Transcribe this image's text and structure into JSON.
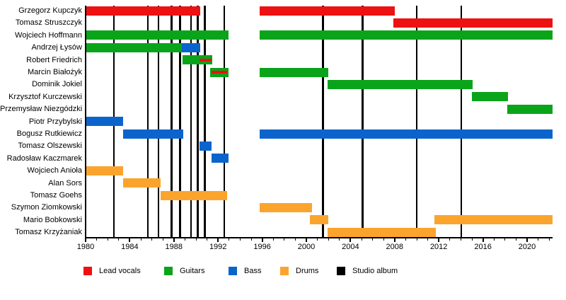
{
  "chart_data": {
    "type": "bar",
    "subtype": "horizontal-timeline-gantt",
    "title": "",
    "xlabel": "",
    "ylabel": "",
    "x_axis": {
      "min": 1980,
      "max": 2022.3,
      "major_ticks": [
        1980,
        1984,
        1988,
        1992,
        1996,
        2000,
        2004,
        2008,
        2012,
        2016,
        2020
      ],
      "major_tick_labels": [
        "1980",
        "1984",
        "1988",
        "1992",
        "1996",
        "2000",
        "2004",
        "2008",
        "2012",
        "2016",
        "2020"
      ],
      "minor_tick_interval": 1,
      "grid": false
    },
    "colors": {
      "lead_vocals": "#ee1111",
      "guitars": "#0aa41a",
      "bass": "#0b64cc",
      "drums": "#fba42d",
      "studio_album": "#000000"
    },
    "members": [
      {
        "name": "Grzegorz Kupczyk",
        "segments": [
          {
            "start": 1980,
            "end": 1990.4,
            "role": "lead_vocals"
          },
          {
            "start": 1995.8,
            "end": 2008.0,
            "role": "lead_vocals"
          }
        ],
        "overlays": []
      },
      {
        "name": "Tomasz Struszczyk",
        "segments": [
          {
            "start": 2007.9,
            "end": 2022.3,
            "role": "lead_vocals"
          }
        ],
        "overlays": []
      },
      {
        "name": "Wojciech Hoffmann",
        "segments": [
          {
            "start": 1980,
            "end": 1992.95,
            "role": "guitars"
          },
          {
            "start": 1995.8,
            "end": 2022.3,
            "role": "guitars"
          }
        ],
        "overlays": []
      },
      {
        "name": "Andrzej Łysów",
        "segments": [
          {
            "start": 1980,
            "end": 1988.7,
            "role": "guitars"
          },
          {
            "start": 1988.7,
            "end": 1990.4,
            "role": "bass"
          }
        ],
        "overlays": []
      },
      {
        "name": "Robert Friedrich",
        "segments": [
          {
            "start": 1988.75,
            "end": 1991.45,
            "role": "guitars"
          }
        ],
        "overlays": [
          {
            "start": 1990.3,
            "end": 1991.4,
            "role": "lead_vocals"
          }
        ]
      },
      {
        "name": "Marcin Białożyk",
        "segments": [
          {
            "start": 1991.3,
            "end": 1992.95,
            "role": "guitars"
          },
          {
            "start": 1995.8,
            "end": 2002.0,
            "role": "guitars"
          }
        ],
        "overlays": [
          {
            "start": 1991.4,
            "end": 1992.85,
            "role": "lead_vocals"
          }
        ]
      },
      {
        "name": "Dominik Jokiel",
        "segments": [
          {
            "start": 2001.95,
            "end": 2015.05,
            "role": "guitars"
          }
        ],
        "overlays": []
      },
      {
        "name": "Krzysztof Kurczewski",
        "segments": [
          {
            "start": 2015.0,
            "end": 2018.3,
            "role": "guitars"
          }
        ],
        "overlays": []
      },
      {
        "name": "Przemysław Niezgódzki",
        "segments": [
          {
            "start": 2018.2,
            "end": 2022.3,
            "role": "guitars"
          }
        ],
        "overlays": []
      },
      {
        "name": "Piotr Przybylski",
        "segments": [
          {
            "start": 1980,
            "end": 1983.4,
            "role": "bass"
          }
        ],
        "overlays": []
      },
      {
        "name": "Bogusz Rutkiewicz",
        "segments": [
          {
            "start": 1983.4,
            "end": 1988.85,
            "role": "bass"
          },
          {
            "start": 1995.8,
            "end": 2022.3,
            "role": "bass"
          }
        ],
        "overlays": []
      },
      {
        "name": "Tomasz Olszewski",
        "segments": [
          {
            "start": 1990.3,
            "end": 1991.4,
            "role": "bass"
          }
        ],
        "overlays": []
      },
      {
        "name": "Radosław Kaczmarek",
        "segments": [
          {
            "start": 1991.4,
            "end": 1992.95,
            "role": "bass"
          }
        ],
        "overlays": []
      },
      {
        "name": "Wojciech Anioła",
        "segments": [
          {
            "start": 1980,
            "end": 1983.4,
            "role": "drums"
          }
        ],
        "overlays": []
      },
      {
        "name": "Alan Sors",
        "segments": [
          {
            "start": 1983.4,
            "end": 1986.8,
            "role": "drums"
          }
        ],
        "overlays": []
      },
      {
        "name": "Tomasz Goehs",
        "segments": [
          {
            "start": 1986.8,
            "end": 1992.8,
            "role": "drums"
          }
        ],
        "overlays": []
      },
      {
        "name": "Szymon Ziomkowski",
        "segments": [
          {
            "start": 1995.8,
            "end": 2000.5,
            "role": "drums"
          }
        ],
        "overlays": []
      },
      {
        "name": "Mario Bobkowski",
        "segments": [
          {
            "start": 2000.35,
            "end": 2002.0,
            "role": "drums"
          },
          {
            "start": 2011.6,
            "end": 2022.3,
            "role": "drums"
          }
        ],
        "overlays": []
      },
      {
        "name": "Tomasz Krzyżaniak",
        "segments": [
          {
            "start": 2001.9,
            "end": 2011.7,
            "role": "drums"
          }
        ],
        "overlays": []
      }
    ],
    "studio_albums_years": [
      1982.55,
      1985.65,
      1986.6,
      1987.8,
      1988.55,
      1989.55,
      1990.15,
      1990.8,
      1992.55,
      2001.5,
      2005.1,
      2010.0,
      2014.05
    ],
    "legend": [
      {
        "label": "Lead vocals",
        "role": "lead_vocals"
      },
      {
        "label": "Guitars",
        "role": "guitars"
      },
      {
        "label": "Bass",
        "role": "bass"
      },
      {
        "label": "Drums",
        "role": "drums"
      },
      {
        "label": "Studio album",
        "role": "studio_album"
      }
    ]
  }
}
